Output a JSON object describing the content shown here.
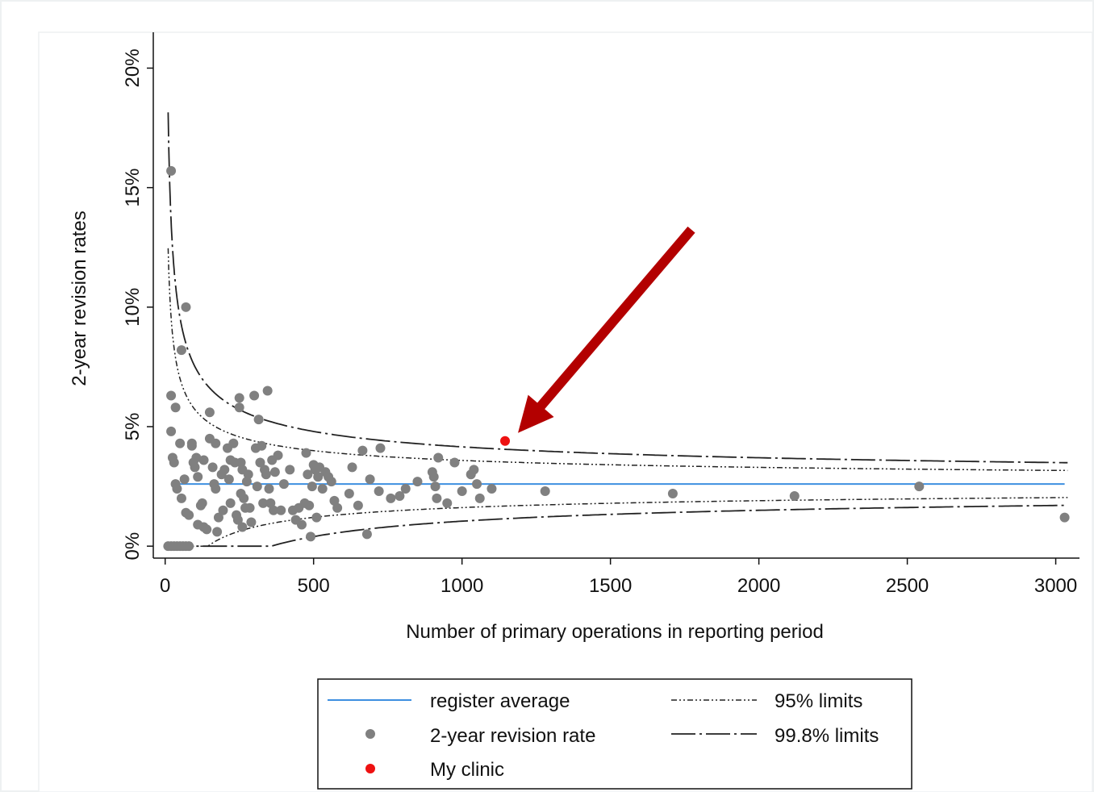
{
  "chart_data": {
    "type": "scatter",
    "title": "",
    "xlabel": "Number of primary operations in reporting period",
    "ylabel": "2-year revision rates",
    "xlim": [
      -40,
      3080
    ],
    "ylim": [
      -0.5,
      21.5
    ],
    "xticks": [
      0,
      500,
      1000,
      1500,
      2000,
      2500,
      3000
    ],
    "xtick_labels": [
      "0",
      "500",
      "1000",
      "1500",
      "2000",
      "2500",
      "3000"
    ],
    "yticks": [
      0,
      5,
      10,
      15,
      20
    ],
    "ytick_labels": [
      "0%",
      "5%",
      "10%",
      "15%",
      "20%"
    ],
    "grid": false,
    "legend_position": "bottom",
    "legend": {
      "register_average": "register average",
      "revision_rate": "2-year revision rate",
      "my_clinic": "My clinic",
      "limits95": "95% limits",
      "limits998": "99.8% limits"
    },
    "colors": {
      "register_average": "#3d8fe0",
      "points": "#808080",
      "my_clinic": "#ee1111",
      "limits": "#222222",
      "arrow": "#b30000",
      "border": "#eef1f2"
    },
    "register_average": 2.6,
    "series": [
      {
        "name": "2-year revision rate",
        "points": [
          [
            10,
            0
          ],
          [
            20,
            0
          ],
          [
            30,
            0
          ],
          [
            40,
            0
          ],
          [
            50,
            0
          ],
          [
            60,
            0
          ],
          [
            70,
            0
          ],
          [
            80,
            0
          ],
          [
            20,
            15.7
          ],
          [
            20,
            6.3
          ],
          [
            20,
            4.8
          ],
          [
            25,
            3.7
          ],
          [
            30,
            3.5
          ],
          [
            35,
            5.8
          ],
          [
            35,
            2.6
          ],
          [
            40,
            2.4
          ],
          [
            55,
            8.2
          ],
          [
            50,
            4.3
          ],
          [
            55,
            2.0
          ],
          [
            65,
            2.8
          ],
          [
            70,
            10.0
          ],
          [
            70,
            1.4
          ],
          [
            80,
            1.3
          ],
          [
            90,
            4.3
          ],
          [
            90,
            4.2
          ],
          [
            95,
            3.5
          ],
          [
            100,
            3.3
          ],
          [
            105,
            3.7
          ],
          [
            110,
            2.9
          ],
          [
            110,
            0.9
          ],
          [
            120,
            1.7
          ],
          [
            125,
            1.8
          ],
          [
            130,
            3.6
          ],
          [
            130,
            0.8
          ],
          [
            140,
            0.7
          ],
          [
            150,
            5.6
          ],
          [
            150,
            4.5
          ],
          [
            160,
            3.3
          ],
          [
            165,
            2.6
          ],
          [
            170,
            4.3
          ],
          [
            170,
            2.4
          ],
          [
            175,
            0.6
          ],
          [
            180,
            1.2
          ],
          [
            190,
            3.0
          ],
          [
            195,
            1.5
          ],
          [
            200,
            3.2
          ],
          [
            210,
            4.1
          ],
          [
            215,
            2.8
          ],
          [
            220,
            3.6
          ],
          [
            220,
            1.8
          ],
          [
            230,
            4.3
          ],
          [
            235,
            3.5
          ],
          [
            240,
            1.3
          ],
          [
            245,
            1.1
          ],
          [
            250,
            6.2
          ],
          [
            250,
            5.8
          ],
          [
            255,
            3.5
          ],
          [
            255,
            2.2
          ],
          [
            260,
            3.2
          ],
          [
            260,
            0.8
          ],
          [
            265,
            2.0
          ],
          [
            270,
            1.6
          ],
          [
            275,
            2.7
          ],
          [
            280,
            3.0
          ],
          [
            285,
            1.6
          ],
          [
            290,
            1.0
          ],
          [
            300,
            6.3
          ],
          [
            305,
            4.1
          ],
          [
            310,
            2.5
          ],
          [
            315,
            5.3
          ],
          [
            320,
            3.5
          ],
          [
            325,
            4.2
          ],
          [
            330,
            1.8
          ],
          [
            335,
            3.2
          ],
          [
            340,
            3.0
          ],
          [
            345,
            6.5
          ],
          [
            350,
            2.4
          ],
          [
            355,
            1.8
          ],
          [
            360,
            3.6
          ],
          [
            365,
            1.5
          ],
          [
            370,
            3.1
          ],
          [
            380,
            3.8
          ],
          [
            390,
            1.5
          ],
          [
            400,
            2.6
          ],
          [
            420,
            3.2
          ],
          [
            430,
            1.5
          ],
          [
            440,
            1.1
          ],
          [
            450,
            1.6
          ],
          [
            460,
            0.9
          ],
          [
            470,
            1.8
          ],
          [
            475,
            3.9
          ],
          [
            480,
            3.0
          ],
          [
            485,
            1.7
          ],
          [
            490,
            0.4
          ],
          [
            495,
            2.5
          ],
          [
            500,
            3.4
          ],
          [
            505,
            3.2
          ],
          [
            510,
            1.2
          ],
          [
            515,
            2.9
          ],
          [
            520,
            3.3
          ],
          [
            530,
            2.4
          ],
          [
            540,
            3.1
          ],
          [
            550,
            2.9
          ],
          [
            560,
            2.7
          ],
          [
            570,
            1.9
          ],
          [
            580,
            1.6
          ],
          [
            620,
            2.2
          ],
          [
            630,
            3.3
          ],
          [
            650,
            1.7
          ],
          [
            665,
            4.0
          ],
          [
            680,
            0.5
          ],
          [
            690,
            2.8
          ],
          [
            720,
            2.3
          ],
          [
            725,
            4.1
          ],
          [
            760,
            2.0
          ],
          [
            790,
            2.1
          ],
          [
            810,
            2.4
          ],
          [
            850,
            2.7
          ],
          [
            900,
            3.1
          ],
          [
            905,
            2.9
          ],
          [
            910,
            2.5
          ],
          [
            915,
            2.0
          ],
          [
            920,
            3.7
          ],
          [
            950,
            1.8
          ],
          [
            975,
            3.5
          ],
          [
            1000,
            2.3
          ],
          [
            1030,
            3.0
          ],
          [
            1040,
            3.2
          ],
          [
            1050,
            2.6
          ],
          [
            1060,
            2.0
          ],
          [
            1100,
            2.4
          ],
          [
            1280,
            2.3
          ],
          [
            1710,
            2.2
          ],
          [
            2120,
            2.1
          ],
          [
            2540,
            2.5
          ],
          [
            3030,
            1.2
          ]
        ]
      },
      {
        "name": "My clinic",
        "points": [
          [
            1145,
            4.4
          ]
        ]
      }
    ]
  }
}
